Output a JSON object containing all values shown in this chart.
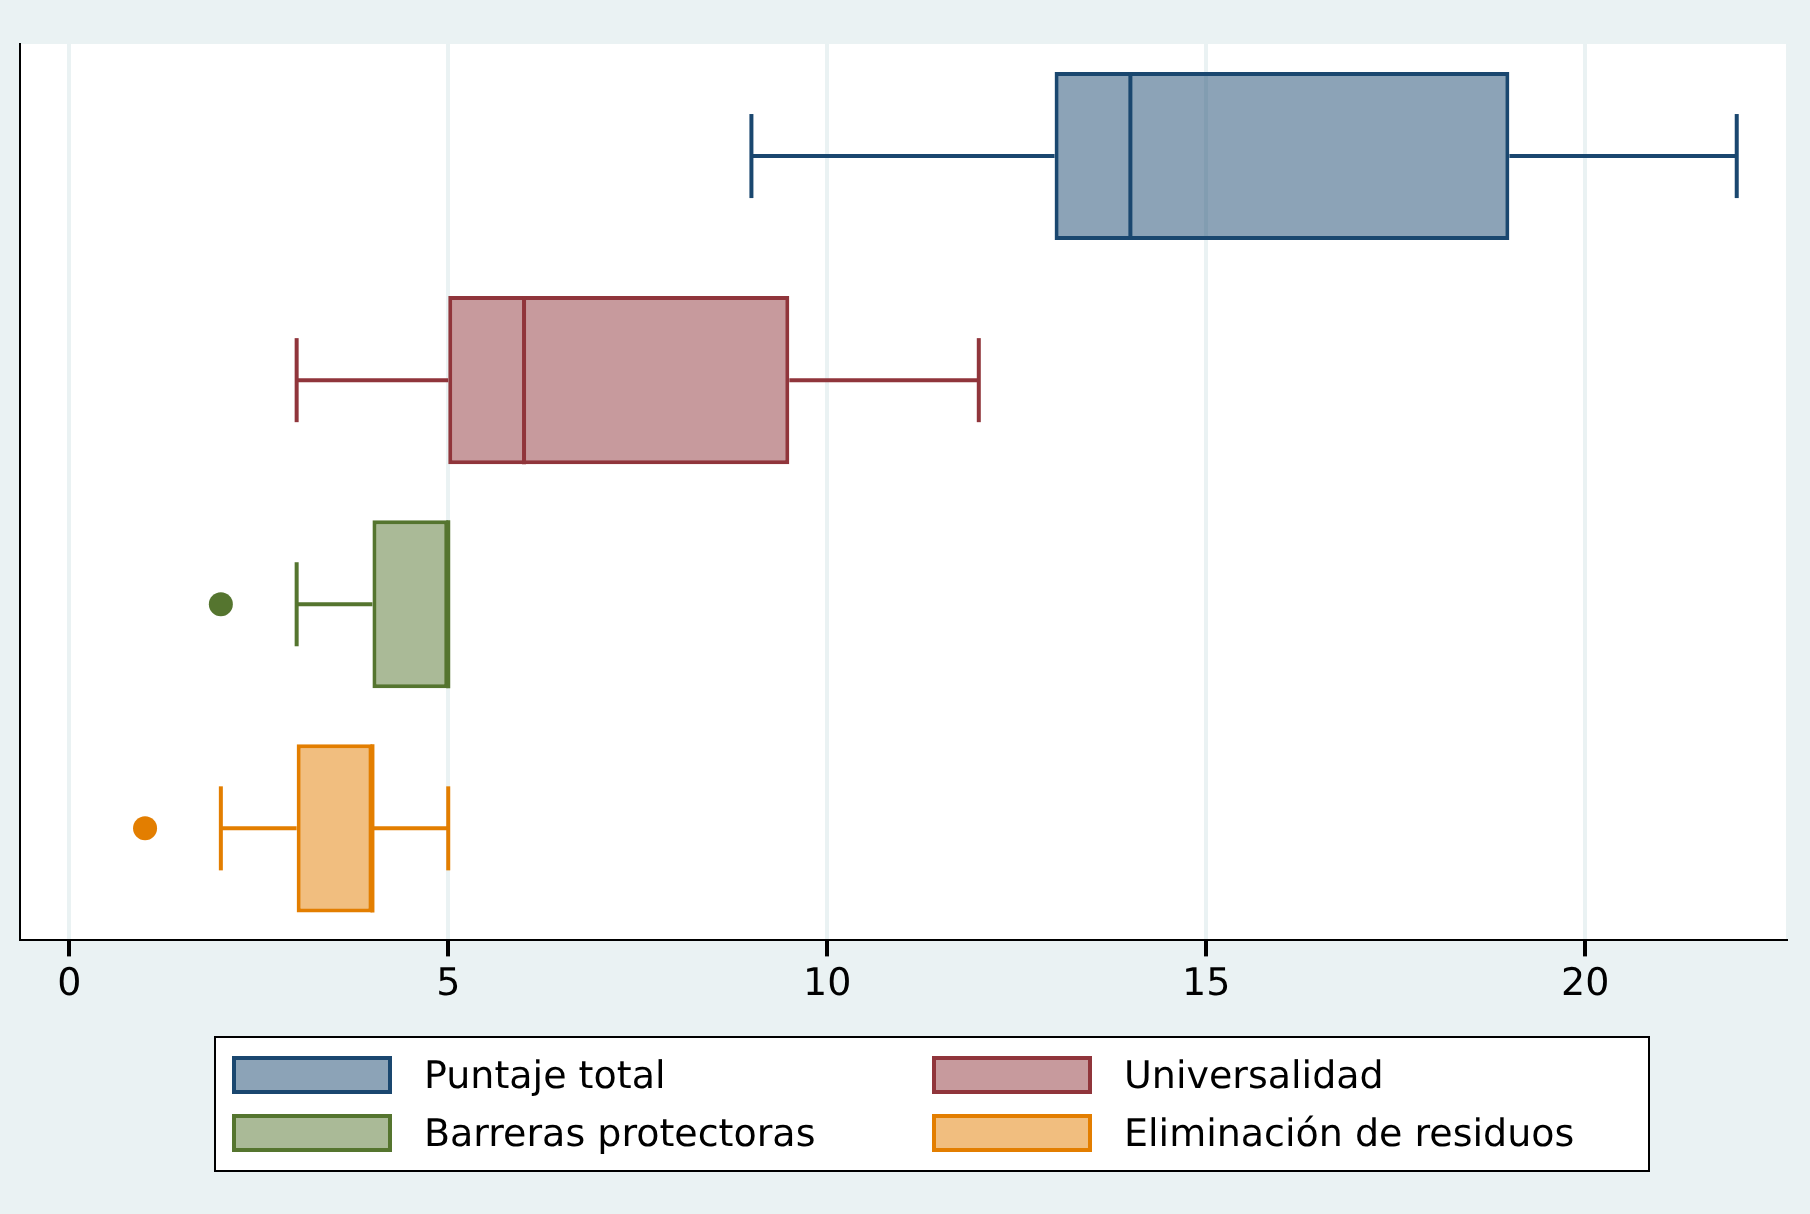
{
  "chart_data": {
    "type": "box",
    "orientation": "horizontal",
    "categories": [
      null,
      null,
      null,
      null
    ],
    "xlim": [
      -0.65,
      22.65
    ],
    "xticks": [
      0,
      5,
      10,
      15,
      20
    ],
    "grid": "x",
    "legend": "bottom",
    "series": [
      {
        "name": "Puntaje total",
        "color": "#1a476f",
        "boxes": [
          {
            "low": 9,
            "q1": 13,
            "median": 14,
            "q3": 19,
            "high": 22
          },
          null,
          null,
          null
        ]
      },
      {
        "name": "Universalidad",
        "color": "#90353b",
        "boxes": [
          null,
          {
            "low": 3,
            "q1": 5,
            "median": 6,
            "q3": 9.5,
            "high": 12
          },
          null,
          null
        ]
      },
      {
        "name": "Barreras protectoras",
        "color": "#55752f",
        "boxes": [
          null,
          null,
          {
            "low": 3,
            "q1": 4,
            "median": 5,
            "q3": 5,
            "high": 5,
            "outliers": [
              2
            ]
          },
          null
        ]
      },
      {
        "name": "Eliminación de residuos",
        "color": "#e37e00",
        "boxes": [
          null,
          null,
          null,
          {
            "low": 2,
            "q1": 3,
            "median": 4,
            "q3": 4,
            "high": 5,
            "outliers": [
              1
            ]
          }
        ]
      }
    ]
  }
}
